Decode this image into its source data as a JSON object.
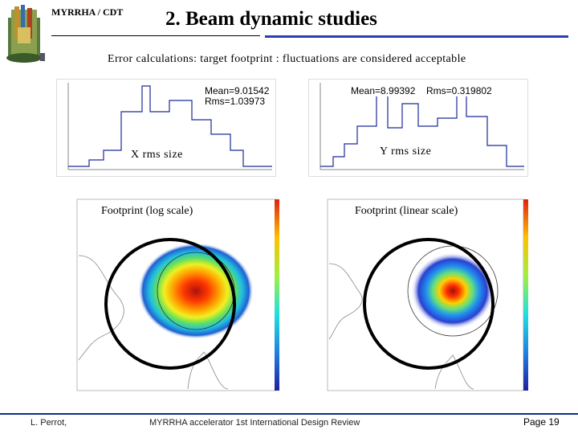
{
  "header": {
    "org_label": "MYRRHA / CDT",
    "title": "2. Beam dynamic studies",
    "subtitle": "Error calculations: target footprint : fluctuations are considered acceptable"
  },
  "left_histogram": {
    "stats_mean": "Mean=9.01542",
    "stats_rms": "Rms=1.03973",
    "caption": "X rms size"
  },
  "right_histogram": {
    "stats_mean": "Mean=8.99392",
    "stats_rms": "Rms=0.319802",
    "caption": "Y rms size"
  },
  "left_footprint": {
    "caption": "Footprint (log scale)"
  },
  "right_footprint": {
    "caption": "Footprint (linear scale)"
  },
  "footer": {
    "author": "L. Perrot,",
    "event": "MYRRHA accelerator 1st International Design Review",
    "page": "Page 19"
  },
  "colors": {
    "accent": "#2a3eb1",
    "footer_line": "#0d2b8f",
    "hist_line": "#1a2a9a"
  }
}
